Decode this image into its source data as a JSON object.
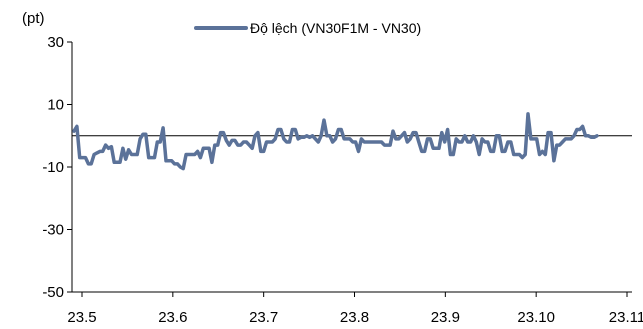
{
  "chart_data": {
    "type": "line",
    "ylabel": "(pt)",
    "ylim": [
      -50,
      30
    ],
    "y_ticks": [
      30,
      10,
      -10,
      -30,
      -50
    ],
    "x_tick_labels": [
      "23.5",
      "23.6",
      "23.7",
      "23.8",
      "23.9",
      "23.10",
      "23.11"
    ],
    "grid": false,
    "legend_position": "top-center",
    "zero_line": true,
    "series": [
      {
        "name": "Độ lệch (VN30F1M - VN30)",
        "color": "#5b7299",
        "values": [
          1.5,
          3,
          -7,
          -7,
          -7,
          -9,
          -9,
          -6,
          -5.5,
          -5,
          -5,
          -3,
          -4,
          -3.5,
          -8.5,
          -8.5,
          -8.5,
          -4,
          -7.5,
          -4.5,
          -6,
          -6,
          -6,
          -1,
          0.5,
          0.5,
          -7,
          -7,
          -7,
          -2,
          -2,
          2.5,
          -8,
          -8,
          -8,
          -9,
          -9,
          -10,
          -10.5,
          -6,
          -6,
          -6,
          -6,
          -5,
          -7,
          -4,
          -4,
          -4,
          -8.5,
          -3,
          -3,
          1,
          1,
          -1.5,
          -3,
          -1.5,
          -1.5,
          -3,
          -3,
          -2,
          -2,
          -3,
          -4,
          0,
          1,
          -5,
          -5,
          -2,
          -2,
          -2,
          -1,
          2,
          2,
          -1,
          -2,
          -2,
          2,
          2,
          -1,
          -0.5,
          -0.5,
          0,
          -0.5,
          0,
          -1,
          -2,
          0,
          5,
          0,
          0,
          -2,
          -1,
          2,
          2,
          -1,
          -1,
          -1,
          -2,
          -2,
          -5,
          -1,
          -2,
          -2,
          -2,
          -2,
          -2,
          -2,
          -2,
          -3,
          -3,
          -3,
          1.5,
          -1,
          -1,
          0,
          1,
          -2,
          -1,
          1,
          1,
          -2,
          -5,
          -5,
          -1,
          -1,
          -4,
          -4,
          -4,
          1,
          -2,
          2,
          -6,
          -6,
          -1,
          -2,
          -2,
          0,
          -2,
          -2,
          0,
          -2,
          -6,
          -1,
          -2,
          -2,
          -5,
          -5,
          0,
          0,
          -5,
          -5,
          -2,
          -2,
          -6,
          -6,
          -6,
          -7,
          -6,
          7,
          -1,
          -1,
          -1,
          -6,
          -5,
          -6,
          1,
          1,
          -8,
          -3,
          -3,
          -2,
          -1,
          -1,
          -1,
          0,
          2,
          2,
          3,
          0,
          0,
          -0.5,
          -0.5,
          0
        ]
      }
    ]
  }
}
